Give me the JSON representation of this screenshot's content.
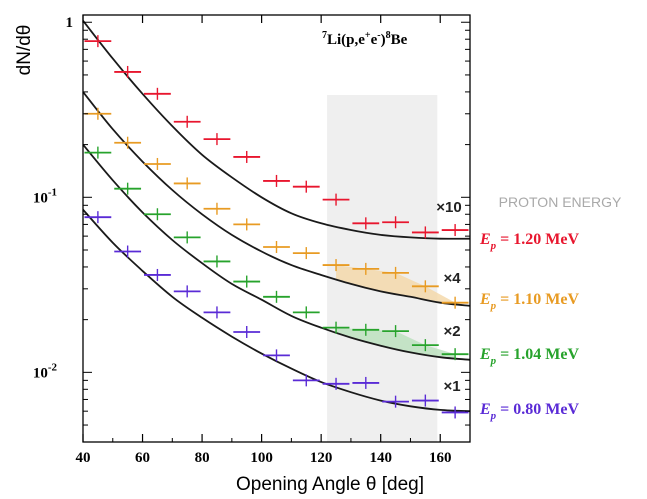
{
  "chart_data": {
    "type": "scatter",
    "title": "",
    "reaction": {
      "pre": "7",
      "main": "Li(p,e",
      "sup1": "+",
      "mid": "e",
      "sup2": "-",
      "post": ")",
      "sup3": "8",
      "tail": "Be"
    },
    "xlabel": "Opening Angle θ [deg]",
    "ylabel": "dN/dθ",
    "xlim": [
      40,
      170
    ],
    "ylim": [
      0.004,
      1.1
    ],
    "yscale": "log",
    "grid": false,
    "x_ticks": [
      40,
      60,
      80,
      100,
      120,
      140,
      160
    ],
    "y_ticks": [
      {
        "value": 1,
        "base": "1",
        "exp": ""
      },
      {
        "value": 0.1,
        "base": "10",
        "exp": "-1"
      },
      {
        "value": 0.01,
        "base": "10",
        "exp": "-2"
      }
    ],
    "legend_title": "PROTON ENERGY",
    "legend_placement": "right",
    "highlight_band": {
      "x_from": 122,
      "x_to": 159
    },
    "series": [
      {
        "name": "E_p = 1.20 MeV",
        "label_var": "E",
        "label_sub": "p",
        "label_value": "= 1.20 MeV",
        "scale_label": "×10",
        "color": "#e8162e",
        "x": [
          45,
          55,
          65,
          75,
          85,
          95,
          105,
          115,
          125,
          135,
          145,
          155,
          165
        ],
        "y": [
          0.78,
          0.52,
          0.39,
          0.27,
          0.215,
          0.17,
          0.124,
          0.115,
          0.097,
          0.071,
          0.072,
          0.063,
          0.065
        ],
        "curve_y": [
          1.02,
          0.62,
          0.39,
          0.255,
          0.175,
          0.13,
          0.1,
          0.081,
          0.071,
          0.065,
          0.061,
          0.059,
          0.058,
          0.058
        ]
      },
      {
        "name": "E_p = 1.10 MeV",
        "label_var": "E",
        "label_sub": "p",
        "label_value": "= 1.10 MeV",
        "scale_label": "×4",
        "color": "#e89b23",
        "excess_fill": "#f4d7a6",
        "x": [
          45,
          55,
          65,
          75,
          85,
          95,
          105,
          115,
          125,
          135,
          145,
          155,
          165
        ],
        "y": [
          0.3,
          0.205,
          0.155,
          0.12,
          0.086,
          0.07,
          0.052,
          0.048,
          0.041,
          0.039,
          0.037,
          0.031,
          0.025
        ],
        "curve_y": [
          0.4,
          0.245,
          0.16,
          0.11,
          0.08,
          0.061,
          0.049,
          0.041,
          0.036,
          0.032,
          0.029,
          0.027,
          0.025,
          0.024
        ]
      },
      {
        "name": "E_p = 1.04 MeV",
        "label_var": "E",
        "label_sub": "p",
        "label_value": "= 1.04 MeV",
        "scale_label": "×2",
        "color": "#27a32c",
        "excess_fill": "#b9e0bc",
        "x": [
          45,
          55,
          65,
          75,
          85,
          95,
          105,
          115,
          125,
          135,
          145,
          155,
          165
        ],
        "y": [
          0.18,
          0.112,
          0.08,
          0.059,
          0.043,
          0.033,
          0.027,
          0.022,
          0.018,
          0.0175,
          0.0172,
          0.0143,
          0.0127
        ],
        "curve_y": [
          0.2,
          0.125,
          0.082,
          0.057,
          0.042,
          0.032,
          0.026,
          0.021,
          0.018,
          0.0158,
          0.0142,
          0.013,
          0.0122,
          0.0118
        ]
      },
      {
        "name": "E_p = 0.80 MeV",
        "label_var": "E",
        "label_sub": "p",
        "label_value": "= 0.80 MeV",
        "scale_label": "×1",
        "color": "#5a2bd6",
        "x": [
          45,
          55,
          65,
          75,
          85,
          95,
          105,
          115,
          125,
          135,
          145,
          155,
          165
        ],
        "y": [
          0.077,
          0.049,
          0.036,
          0.029,
          0.022,
          0.017,
          0.0125,
          0.009,
          0.0086,
          0.0087,
          0.0068,
          0.0069,
          0.0059
        ],
        "curve_y": [
          0.085,
          0.055,
          0.038,
          0.027,
          0.0205,
          0.016,
          0.0128,
          0.0105,
          0.0088,
          0.0077,
          0.0069,
          0.0064,
          0.0061,
          0.006
        ]
      }
    ]
  }
}
